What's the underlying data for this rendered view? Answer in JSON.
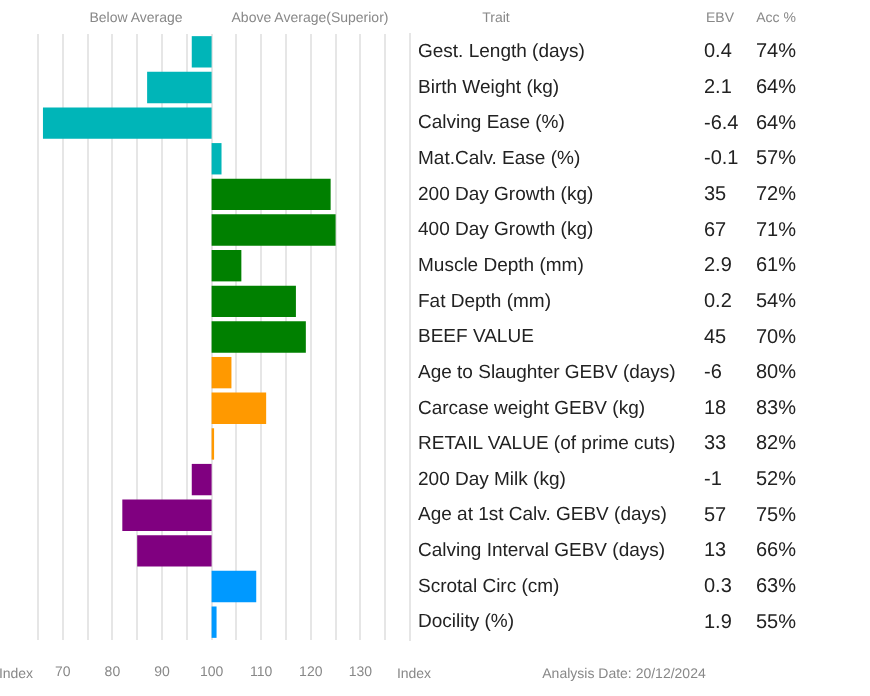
{
  "chart_data": {
    "type": "bar",
    "orientation": "horizontal",
    "categories": [
      "Gest. Length (days)",
      "Birth Weight (kg)",
      "Calving Ease (%)",
      "Mat.Calv. Ease (%)",
      "200 Day Growth (kg)",
      "400 Day Growth (kg)",
      "Muscle Depth (mm)",
      "Fat Depth (mm)",
      "BEEF VALUE",
      "Age to Slaughter GEBV (days)",
      "Carcase weight GEBV (kg)",
      "RETAIL VALUE (of prime cuts)",
      "200 Day Milk (kg)",
      "Age at 1st Calv. GEBV (days)",
      "Calving Interval GEBV (days)",
      "Scrotal Circ (cm)",
      "Docility (%)"
    ],
    "base": [
      100,
      100,
      100,
      100,
      100,
      100,
      100,
      100,
      100,
      100,
      100,
      100,
      100,
      100,
      100,
      100,
      100
    ],
    "values": [
      -4,
      -13,
      -34,
      2,
      24,
      25,
      6,
      17,
      19,
      4,
      11,
      0.5,
      -4,
      -18,
      -15,
      9,
      1
    ],
    "colors": [
      "#00b5b8",
      "#00b5b8",
      "#00b5b8",
      "#00b5b8",
      "#008000",
      "#008000",
      "#008000",
      "#008000",
      "#008000",
      "#ff9900",
      "#ff9900",
      "#ff9900",
      "#800080",
      "#800080",
      "#800080",
      "#0099ff",
      "#0099ff"
    ],
    "xlim": [
      65,
      140
    ],
    "xticks": [
      {
        "value": 65,
        "label": null
      },
      70,
      {
        "value": 75,
        "label": null
      },
      80,
      {
        "value": 85,
        "label": null
      },
      90,
      {
        "value": 95,
        "label": null
      },
      100,
      {
        "value": 105,
        "label": null
      },
      110,
      {
        "value": 115,
        "label": null
      },
      120,
      {
        "value": 125,
        "label": null
      },
      130,
      {
        "value": 135,
        "label": null
      },
      {
        "value": 140,
        "label": null
      }
    ],
    "grid": "x",
    "legend": false,
    "annotations": [
      "Below Average",
      "Above Average(Superior)",
      "Trait",
      "EBV",
      "Acc %",
      "Index",
      "Index",
      "Analysis Date: 20/12/2024",
      "0.4",
      "74%",
      "2.1",
      "64%",
      "-6.4",
      "64%",
      "-0.1",
      "57%",
      "35",
      "72%",
      "67",
      "71%",
      "2.9",
      "61%",
      "0.2",
      "54%",
      "45",
      "70%",
      "-6",
      "80%",
      "18",
      "83%",
      "33",
      "82%",
      "-1",
      "52%",
      "57",
      "75%",
      "13",
      "66%",
      "0.3",
      "63%",
      "1.9",
      "55%"
    ]
  }
}
